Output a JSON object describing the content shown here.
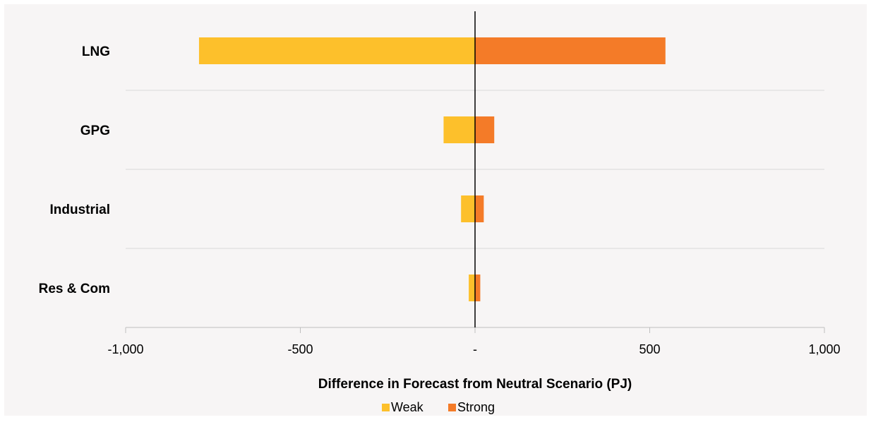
{
  "chart_data": {
    "type": "bar",
    "orientation": "horizontal",
    "stacked": true,
    "categories": [
      "LNG",
      "GPG",
      "Industrial",
      "Res & Com"
    ],
    "series": [
      {
        "name": "Weak",
        "values": [
          -790,
          -90,
          -40,
          -18
        ],
        "color": "#FDC02B"
      },
      {
        "name": "Strong",
        "values": [
          545,
          55,
          25,
          15
        ],
        "color": "#F47B28"
      }
    ],
    "xlabel": "Difference in Forecast from Neutral Scenario (PJ)",
    "ylabel": "",
    "xlim": [
      -1000,
      1000
    ],
    "xticks": [
      -1000,
      -500,
      0,
      500,
      1000
    ],
    "xtick_labels": [
      "-1,000",
      "-500",
      "-",
      "500",
      "1,000"
    ],
    "grid": "horizontal",
    "legend": "bottom-center",
    "background": "#F7F5F5",
    "gridline_color": "#D9D9D9",
    "zero_line_color": "#000000"
  }
}
